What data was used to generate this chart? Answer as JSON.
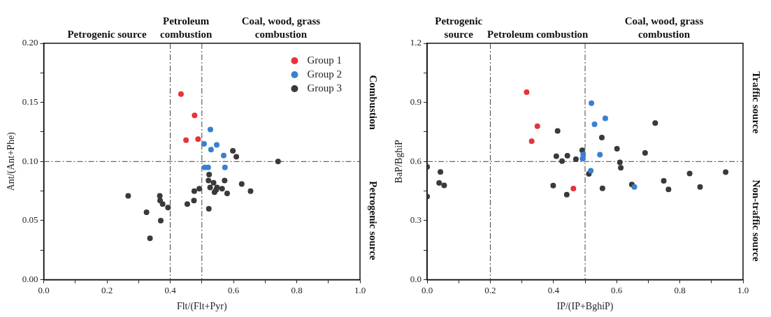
{
  "chart_data": [
    {
      "type": "scatter",
      "xlabel": "Flt/(Flt+Pyr)",
      "ylabel": "Ant/(Ant+Phe)",
      "legend": "top right",
      "marker": "circle",
      "xlim": [
        0,
        1
      ],
      "ylim": [
        0,
        0.2
      ],
      "xticks": [
        {
          "value": 0,
          "label": "0.0"
        },
        {
          "value": 0.1,
          "label": null
        },
        {
          "value": 0.2,
          "label": "0.2"
        },
        {
          "value": 0.3,
          "label": null
        },
        {
          "value": 0.4,
          "label": "0.4"
        },
        {
          "value": 0.5,
          "label": null
        },
        {
          "value": 0.6,
          "label": "0.6"
        },
        {
          "value": 0.7,
          "label": null
        },
        {
          "value": 0.8,
          "label": "0.8"
        },
        {
          "value": 0.9,
          "label": null
        },
        {
          "value": 1,
          "label": "1.0"
        }
      ],
      "yticks": [
        {
          "value": 0,
          "label": "0.00"
        },
        {
          "value": 0.025,
          "label": null
        },
        {
          "value": 0.05,
          "label": "0.05"
        },
        {
          "value": 0.075,
          "label": null
        },
        {
          "value": 0.1,
          "label": "0.10"
        },
        {
          "value": 0.125,
          "label": null
        },
        {
          "value": 0.15,
          "label": "0.15"
        },
        {
          "value": 0.175,
          "label": null
        },
        {
          "value": 0.2,
          "label": "0.20"
        }
      ],
      "ref_lines": [
        {
          "axis": "x",
          "value": 0.4,
          "line_style": "dashdot"
        },
        {
          "axis": "x",
          "value": 0.5,
          "line_style": "dashdot"
        },
        {
          "axis": "y",
          "value": 0.1,
          "line_style": "dashdot"
        }
      ],
      "annotations": [
        "Petrogenic source",
        "Petroleum combustion",
        "Coal, wood, grass combustion",
        "Combustion",
        "Petrogenic source"
      ],
      "series": [
        {
          "name": "Group 1",
          "color": "#e8333a",
          "x": [
            0.434,
            0.477,
            0.45,
            0.488
          ],
          "values": [
            0.157,
            0.139,
            0.118,
            0.119
          ]
        },
        {
          "name": "Group 2",
          "color": "#3a7fd0",
          "x": [
            0.527,
            0.507,
            0.547,
            0.529,
            0.569,
            0.509,
            0.52,
            0.573
          ],
          "values": [
            0.127,
            0.115,
            0.114,
            0.11,
            0.105,
            0.095,
            0.095,
            0.095
          ]
        },
        {
          "name": "Group 3",
          "color": "#3a3a3a",
          "x": [
            0.598,
            0.609,
            0.741,
            0.523,
            0.521,
            0.537,
            0.572,
            0.626,
            0.526,
            0.548,
            0.564,
            0.545,
            0.54,
            0.58,
            0.654,
            0.492,
            0.476,
            0.475,
            0.454,
            0.522,
            0.267,
            0.367,
            0.368,
            0.376,
            0.393,
            0.325,
            0.37,
            0.336
          ],
          "values": [
            0.109,
            0.104,
            0.1,
            0.089,
            0.084,
            0.082,
            0.084,
            0.081,
            0.078,
            0.078,
            0.077,
            0.076,
            0.074,
            0.073,
            0.075,
            0.077,
            0.075,
            0.067,
            0.064,
            0.06,
            0.071,
            0.071,
            0.067,
            0.064,
            0.061,
            0.057,
            0.05,
            0.035
          ]
        }
      ]
    },
    {
      "type": "scatter",
      "xlabel": "IP/(IP+BghiP)",
      "ylabel": "BaP/BghiP",
      "marker": "circle",
      "xlim": [
        0,
        1
      ],
      "ylim": [
        0,
        1.2
      ],
      "xticks": [
        {
          "value": 0,
          "label": "0.0"
        },
        {
          "value": 0.1,
          "label": null
        },
        {
          "value": 0.2,
          "label": "0.2"
        },
        {
          "value": 0.3,
          "label": null
        },
        {
          "value": 0.4,
          "label": "0.4"
        },
        {
          "value": 0.5,
          "label": null
        },
        {
          "value": 0.6,
          "label": "0.6"
        },
        {
          "value": 0.7,
          "label": null
        },
        {
          "value": 0.8,
          "label": "0.8"
        },
        {
          "value": 0.9,
          "label": null
        },
        {
          "value": 1,
          "label": "1.0"
        }
      ],
      "yticks": [
        {
          "value": 0,
          "label": "0.0"
        },
        {
          "value": 0.15,
          "label": null
        },
        {
          "value": 0.3,
          "label": "0.3"
        },
        {
          "value": 0.45,
          "label": null
        },
        {
          "value": 0.6,
          "label": "0.6"
        },
        {
          "value": 0.75,
          "label": null
        },
        {
          "value": 0.9,
          "label": "0.9"
        },
        {
          "value": 1.05,
          "label": null
        },
        {
          "value": 1.2,
          "label": "1.2"
        }
      ],
      "ref_lines": [
        {
          "axis": "x",
          "value": 0.2,
          "line_style": "dashdot"
        },
        {
          "axis": "x",
          "value": 0.5,
          "line_style": "dashdot"
        },
        {
          "axis": "y",
          "value": 0.6,
          "line_style": "dashdot"
        }
      ],
      "annotations": [
        "Petrogenic source",
        "Petroleum combustion",
        "Coal, wood, grass combustion",
        "Traffic source",
        "Non-traffic source"
      ],
      "series": [
        {
          "color": "#e8333a",
          "x": [
            0.315,
            0.349,
            0.331,
            0.463
          ],
          "values": [
            0.952,
            0.779,
            0.703,
            0.463
          ]
        },
        {
          "color": "#3a7fd0",
          "x": [
            0.52,
            0.564,
            0.53,
            0.547,
            0.494,
            0.492,
            0.518,
            0.656
          ],
          "values": [
            0.896,
            0.819,
            0.789,
            0.635,
            0.636,
            0.614,
            0.553,
            0.471
          ]
        },
        {
          "color": "#3a3a3a",
          "x": [
            0.0,
            0.0,
            0.042,
            0.038,
            0.054,
            0.413,
            0.553,
            0.491,
            0.409,
            0.444,
            0.427,
            0.471,
            0.601,
            0.69,
            0.722,
            0.61,
            0.613,
            0.512,
            0.555,
            0.399,
            0.442,
            0.648,
            0.749,
            0.764,
            0.831,
            0.864,
            0.945
          ],
          "values": [
            0.573,
            0.422,
            0.547,
            0.491,
            0.479,
            0.755,
            0.722,
            0.657,
            0.627,
            0.629,
            0.602,
            0.612,
            0.665,
            0.644,
            0.795,
            0.596,
            0.568,
            0.537,
            0.464,
            0.478,
            0.432,
            0.483,
            0.502,
            0.458,
            0.539,
            0.471,
            0.546
          ]
        }
      ]
    }
  ]
}
